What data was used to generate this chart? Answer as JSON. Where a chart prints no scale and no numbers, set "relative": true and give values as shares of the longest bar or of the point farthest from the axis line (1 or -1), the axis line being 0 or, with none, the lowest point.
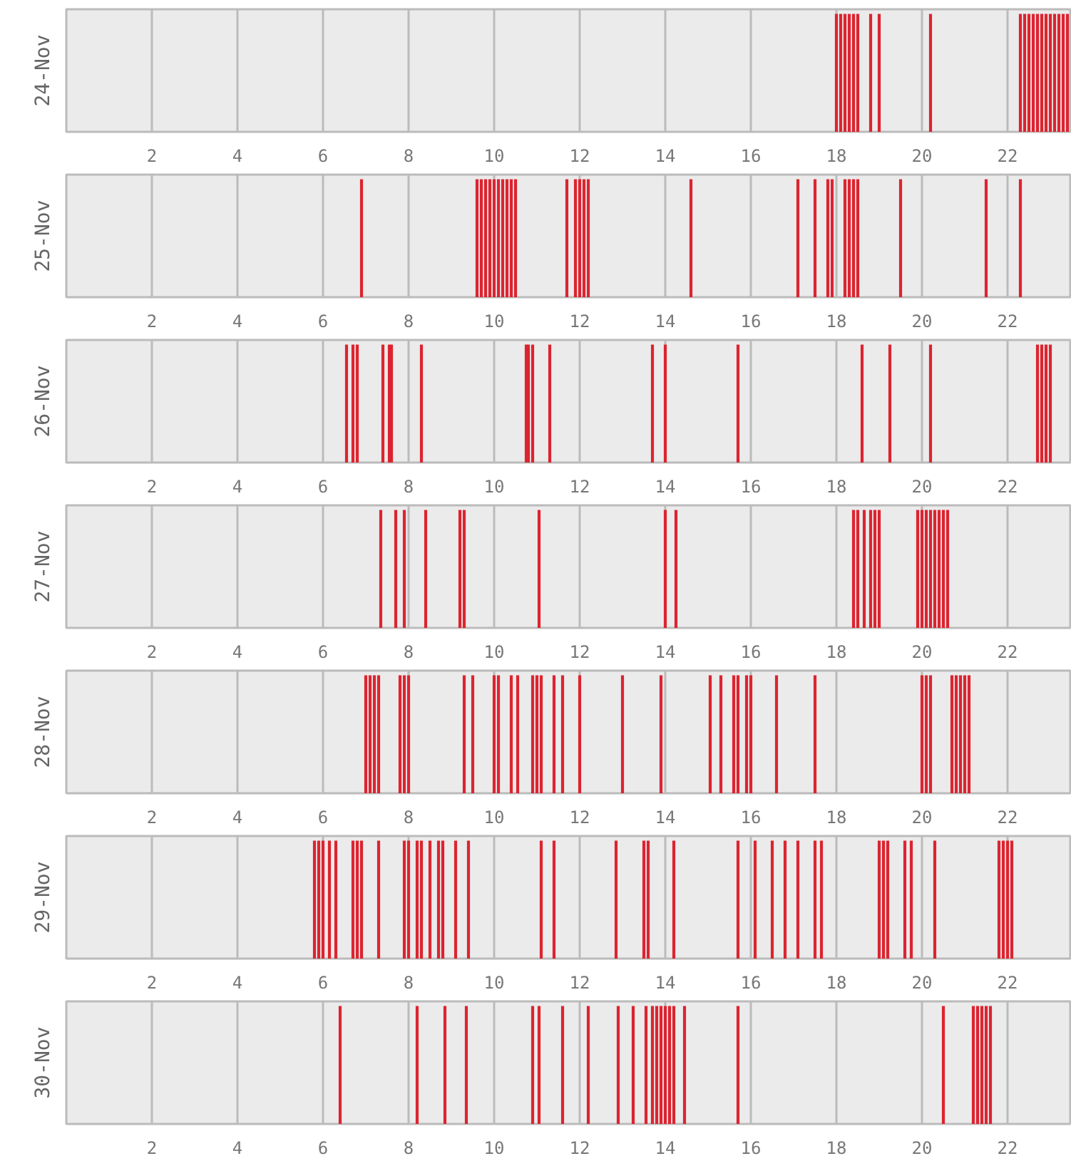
{
  "chart_data": [
    {
      "type": "bar",
      "ylabel": "24-Nov",
      "relative": true,
      "color": "#dc2430",
      "xlim": [
        0,
        23.5
      ],
      "xticks": [
        2,
        4,
        6,
        8,
        10,
        12,
        14,
        16,
        18,
        20,
        22
      ],
      "grid": "x",
      "tick_labels": "x",
      "x": [
        18.0,
        18.1,
        18.2,
        18.3,
        18.4,
        18.5,
        18.8,
        19.0,
        20.2,
        22.3,
        22.4,
        22.5,
        22.6,
        22.7,
        22.8,
        22.9,
        23.0,
        23.1,
        23.2,
        23.3,
        23.4
      ],
      "values": [
        1,
        1,
        1,
        1,
        1,
        1,
        1,
        1,
        1,
        1,
        1,
        1,
        1,
        1,
        1,
        1,
        1,
        1,
        1,
        1,
        1
      ]
    },
    {
      "type": "bar",
      "ylabel": "25-Nov",
      "relative": true,
      "color": "#dc2430",
      "xlim": [
        0,
        23.5
      ],
      "xticks": [
        2,
        4,
        6,
        8,
        10,
        12,
        14,
        16,
        18,
        20,
        22
      ],
      "grid": "x",
      "tick_labels": "x",
      "x": [
        6.9,
        9.6,
        9.7,
        9.8,
        9.9,
        10.0,
        10.1,
        10.2,
        10.3,
        10.4,
        10.5,
        11.7,
        11.9,
        12.0,
        12.1,
        12.2,
        14.6,
        17.1,
        17.5,
        17.8,
        17.9,
        18.2,
        18.3,
        18.4,
        18.5,
        19.5,
        21.5,
        22.3
      ],
      "values": [
        1,
        1,
        1,
        1,
        1,
        1,
        1,
        1,
        1,
        1,
        1,
        1,
        1,
        1,
        1,
        1,
        1,
        1,
        1,
        1,
        1,
        1,
        1,
        1,
        1,
        1,
        1,
        1
      ]
    },
    {
      "type": "bar",
      "ylabel": "26-Nov",
      "relative": true,
      "color": "#dc2430",
      "xlim": [
        0,
        23.5
      ],
      "xticks": [
        2,
        4,
        6,
        8,
        10,
        12,
        14,
        16,
        18,
        20,
        22
      ],
      "grid": "x",
      "tick_labels": "x",
      "x": [
        6.55,
        6.7,
        6.8,
        7.4,
        7.55,
        7.6,
        8.3,
        10.75,
        10.8,
        10.9,
        11.3,
        13.7,
        14.0,
        15.7,
        18.6,
        19.25,
        20.2,
        22.7,
        22.8,
        22.9,
        23.0
      ],
      "values": [
        1,
        1,
        1,
        1,
        1,
        1,
        1,
        1,
        1,
        1,
        1,
        1,
        1,
        1,
        1,
        1,
        1,
        1,
        1,
        1,
        1
      ]
    },
    {
      "type": "bar",
      "ylabel": "27-Nov",
      "relative": true,
      "color": "#dc2430",
      "xlim": [
        0,
        23.5
      ],
      "xticks": [
        2,
        4,
        6,
        8,
        10,
        12,
        14,
        16,
        18,
        20,
        22
      ],
      "grid": "x",
      "tick_labels": "x",
      "x": [
        7.35,
        7.7,
        7.9,
        8.4,
        9.2,
        9.3,
        11.05,
        14.0,
        14.25,
        18.4,
        18.5,
        18.65,
        18.8,
        18.9,
        19.0,
        19.9,
        20.0,
        20.1,
        20.2,
        20.3,
        20.4,
        20.5,
        20.6
      ],
      "values": [
        1,
        1,
        1,
        1,
        1,
        1,
        1,
        1,
        1,
        1,
        1,
        1,
        1,
        1,
        1,
        1,
        1,
        1,
        1,
        1,
        1,
        1,
        1
      ]
    },
    {
      "type": "bar",
      "ylabel": "28-Nov",
      "relative": true,
      "color": "#dc2430",
      "xlim": [
        0,
        23.5
      ],
      "xticks": [
        2,
        4,
        6,
        8,
        10,
        12,
        14,
        16,
        18,
        20,
        22
      ],
      "grid": "x",
      "tick_labels": "x",
      "x": [
        7.0,
        7.1,
        7.2,
        7.3,
        7.8,
        7.9,
        8.0,
        9.3,
        9.5,
        10.0,
        10.1,
        10.4,
        10.55,
        10.9,
        11.0,
        11.1,
        11.4,
        11.6,
        12.0,
        13.0,
        13.9,
        15.05,
        15.3,
        15.6,
        15.7,
        15.9,
        16.0,
        16.6,
        17.5,
        20.0,
        20.1,
        20.2,
        20.7,
        20.8,
        20.9,
        21.0,
        21.1
      ],
      "values": [
        1,
        1,
        1,
        1,
        1,
        1,
        1,
        1,
        1,
        1,
        1,
        1,
        1,
        1,
        1,
        1,
        1,
        1,
        1,
        1,
        1,
        1,
        1,
        1,
        1,
        1,
        1,
        1,
        1,
        1,
        1,
        1,
        1,
        1,
        1,
        1,
        1
      ]
    },
    {
      "type": "bar",
      "ylabel": "29-Nov",
      "relative": true,
      "color": "#dc2430",
      "xlim": [
        0,
        23.5
      ],
      "xticks": [
        2,
        4,
        6,
        8,
        10,
        12,
        14,
        16,
        18,
        20,
        22
      ],
      "grid": "x",
      "tick_labels": "x",
      "x": [
        5.8,
        5.9,
        6.0,
        6.15,
        6.3,
        6.7,
        6.8,
        6.9,
        7.3,
        7.9,
        8.0,
        8.2,
        8.3,
        8.5,
        8.7,
        8.8,
        9.1,
        9.4,
        11.1,
        11.4,
        12.85,
        13.5,
        13.6,
        14.2,
        15.7,
        16.1,
        16.5,
        16.8,
        17.1,
        17.5,
        17.65,
        19.0,
        19.1,
        19.2,
        19.6,
        19.75,
        20.3,
        21.8,
        21.9,
        22.0,
        22.1
      ],
      "values": [
        1,
        1,
        1,
        1,
        1,
        1,
        1,
        1,
        1,
        1,
        1,
        1,
        1,
        1,
        1,
        1,
        1,
        1,
        1,
        1,
        1,
        1,
        1,
        1,
        1,
        1,
        1,
        1,
        1,
        1,
        1,
        1,
        1,
        1,
        1,
        1,
        1,
        1,
        1,
        1,
        1
      ]
    },
    {
      "type": "bar",
      "ylabel": "30-Nov",
      "relative": true,
      "color": "#dc2430",
      "xlim": [
        0,
        23.5
      ],
      "xticks": [
        2,
        4,
        6,
        8,
        10,
        12,
        14,
        16,
        18,
        20,
        22
      ],
      "grid": "x",
      "tick_labels": "x",
      "x": [
        6.4,
        8.2,
        8.85,
        9.35,
        10.9,
        11.05,
        11.6,
        12.2,
        12.9,
        13.25,
        13.55,
        13.7,
        13.8,
        13.9,
        14.0,
        14.1,
        14.2,
        14.45,
        15.7,
        20.5,
        21.2,
        21.3,
        21.4,
        21.5,
        21.6
      ],
      "values": [
        1,
        1,
        1,
        1,
        1,
        1,
        1,
        1,
        1,
        1,
        1,
        1,
        1,
        1,
        1,
        1,
        1,
        1,
        1,
        1,
        1,
        1,
        1,
        1,
        1
      ]
    }
  ]
}
